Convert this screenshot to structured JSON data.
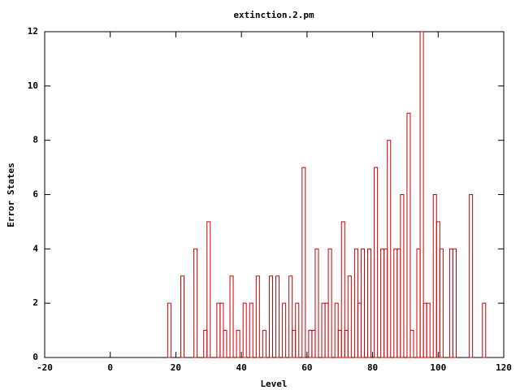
{
  "chart_data": {
    "type": "histogram",
    "title": "extinction.2.pm",
    "x_label": "Level",
    "y_label": "Error States",
    "x": [
      18,
      22,
      26,
      29,
      30,
      33,
      34,
      35,
      37,
      39,
      41,
      43,
      45,
      47,
      49,
      51,
      53,
      55,
      56,
      57,
      59,
      61,
      62,
      63,
      65,
      66,
      67,
      69,
      70,
      71,
      72,
      73,
      75,
      76,
      77,
      79,
      81,
      83,
      84,
      85,
      87,
      88,
      89,
      91,
      92,
      94,
      95,
      96,
      97,
      99,
      100,
      101,
      104,
      105,
      110,
      114
    ],
    "values": [
      2,
      3,
      4,
      1,
      5,
      2,
      2,
      1,
      3,
      1,
      2,
      2,
      3,
      1,
      3,
      3,
      2,
      3,
      1,
      2,
      7,
      1,
      1,
      4,
      2,
      2,
      4,
      2,
      1,
      5,
      1,
      3,
      4,
      2,
      4,
      4,
      7,
      4,
      4,
      8,
      4,
      4,
      6,
      9,
      1,
      4,
      12,
      2,
      2,
      6,
      5,
      4,
      4,
      4,
      6,
      2
    ],
    "color": "#cc0000",
    "xlim": [
      -20,
      120
    ],
    "xticks": [
      -20,
      0,
      20,
      40,
      60,
      80,
      100,
      120
    ],
    "ylim": [
      0,
      12
    ],
    "yticks": [
      0,
      2,
      4,
      6,
      8,
      10,
      12
    ]
  }
}
